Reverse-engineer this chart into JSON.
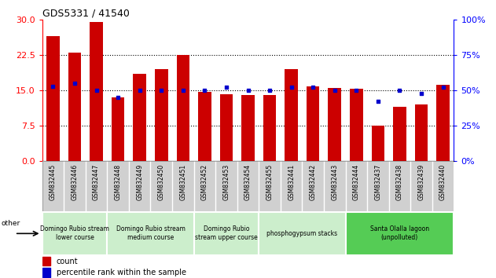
{
  "title": "GDS5331 / 41540",
  "samples": [
    "GSM832445",
    "GSM832446",
    "GSM832447",
    "GSM832448",
    "GSM832449",
    "GSM832450",
    "GSM832451",
    "GSM832452",
    "GSM832453",
    "GSM832454",
    "GSM832455",
    "GSM832441",
    "GSM832442",
    "GSM832443",
    "GSM832444",
    "GSM832437",
    "GSM832438",
    "GSM832439",
    "GSM832440"
  ],
  "counts": [
    26.5,
    23.0,
    29.5,
    13.5,
    18.5,
    19.5,
    22.5,
    14.7,
    14.2,
    14.0,
    14.0,
    19.5,
    15.8,
    15.5,
    15.3,
    7.5,
    11.5,
    12.0,
    16.2
  ],
  "percentiles": [
    53,
    55,
    50,
    45,
    50,
    50,
    50,
    50,
    52,
    50,
    50,
    52,
    52,
    50,
    50,
    42,
    50,
    48,
    52
  ],
  "ylim_left": [
    0,
    30
  ],
  "ylim_right": [
    0,
    100
  ],
  "yticks_left": [
    0,
    7.5,
    15,
    22.5,
    30
  ],
  "yticks_right": [
    0,
    25,
    50,
    75,
    100
  ],
  "bar_color": "#cc0000",
  "dot_color": "#0000cc",
  "groups": [
    {
      "label": "Domingo Rubio stream\nlower course",
      "start": 0,
      "end": 3,
      "color": "#cceecc"
    },
    {
      "label": "Domingo Rubio stream\nmedium course",
      "start": 3,
      "end": 7,
      "color": "#cceecc"
    },
    {
      "label": "Domingo Rubio\nstream upper course",
      "start": 7,
      "end": 10,
      "color": "#cceecc"
    },
    {
      "label": "phosphogypsum stacks",
      "start": 10,
      "end": 14,
      "color": "#cceecc"
    },
    {
      "label": "Santa Olalla lagoon\n(unpolluted)",
      "start": 14,
      "end": 19,
      "color": "#55cc55"
    }
  ],
  "sample_box_color": "#d0d0d0",
  "legend_count_color": "#cc0000",
  "legend_dot_color": "#0000cc"
}
